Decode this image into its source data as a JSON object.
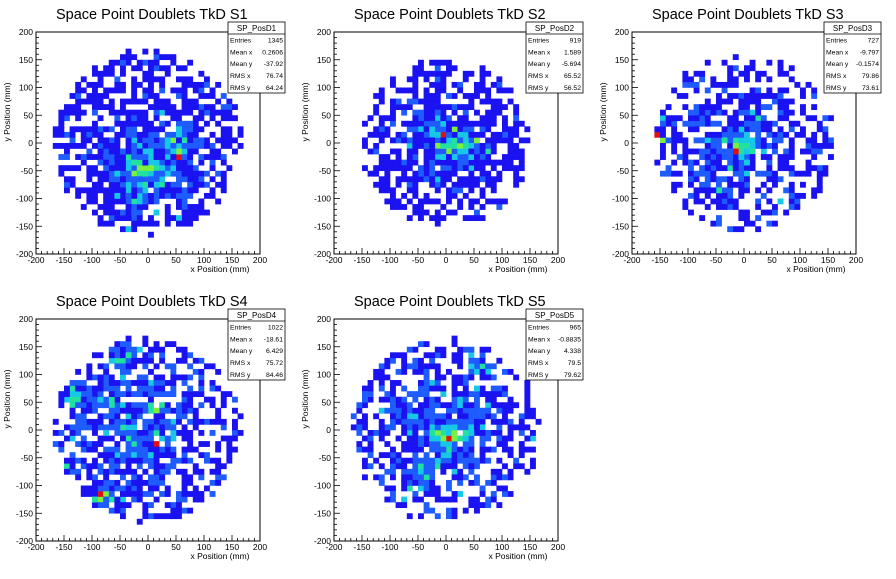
{
  "chart_data": [
    {
      "type": "heatmap",
      "title": "Space Point Doublets TkD S1",
      "xlabel": "x Position (mm)",
      "ylabel": "y Position (mm)",
      "xlim": [
        -200,
        200
      ],
      "ylim": [
        -200,
        200
      ],
      "xticks": [
        -200,
        -150,
        -100,
        -50,
        0,
        50,
        100,
        150,
        200
      ],
      "yticks": [
        -200,
        -150,
        -100,
        -50,
        0,
        50,
        100,
        150,
        200
      ],
      "stats": {
        "name": "SP_PosD1",
        "rows": [
          {
            "label": "Entries",
            "value": "1345"
          },
          {
            "label": "Mean x",
            "value": "0.2606"
          },
          {
            "label": "Mean y",
            "value": "-37.92"
          },
          {
            "label": "RMS x",
            "value": "76.74"
          },
          {
            "label": "RMS y",
            "value": "64.24"
          }
        ]
      },
      "colors": [
        "#1a12f0",
        "#1f5cff",
        "#17c8e6",
        "#22e0a0",
        "#7cf03c",
        "#e01010"
      ],
      "distribution": {
        "entries": 1345,
        "mean_x": 0.2606,
        "mean_y": -37.92,
        "rms_x": 76.74,
        "rms_y": 64.24,
        "radius": 165,
        "hot": [
          [
            0,
            -40
          ],
          [
            50,
            0
          ],
          [
            -30,
            -100
          ]
        ]
      }
    },
    {
      "type": "heatmap",
      "title": "Space Point Doublets TkD S2",
      "xlabel": "x Position (mm)",
      "ylabel": "y Position (mm)",
      "xlim": [
        -200,
        200
      ],
      "ylim": [
        -200,
        200
      ],
      "xticks": [
        -200,
        -150,
        -100,
        -50,
        0,
        50,
        100,
        150,
        200
      ],
      "yticks": [
        -200,
        -150,
        -100,
        -50,
        0,
        50,
        100,
        150,
        200
      ],
      "stats": {
        "name": "SP_PosD2",
        "rows": [
          {
            "label": "Entries",
            "value": "919"
          },
          {
            "label": "Mean x",
            "value": "1.589"
          },
          {
            "label": "Mean y",
            "value": "-5.694"
          },
          {
            "label": "RMS x",
            "value": "65.52"
          },
          {
            "label": "RMS y",
            "value": "56.52"
          }
        ]
      },
      "colors": [
        "#1a12f0",
        "#1f5cff",
        "#17c8e6",
        "#22e0a0",
        "#7cf03c",
        "#e01010"
      ],
      "distribution": {
        "entries": 919,
        "mean_x": 1.589,
        "mean_y": -5.694,
        "rms_x": 65.52,
        "rms_y": 56.52,
        "radius": 150,
        "hot": [
          [
            -20,
            20
          ],
          [
            10,
            0
          ],
          [
            30,
            -10
          ]
        ]
      }
    },
    {
      "type": "heatmap",
      "title": "Space Point Doublets TkD S3",
      "xlabel": "x Position (mm)",
      "ylabel": "y Position (mm)",
      "xlim": [
        -200,
        200
      ],
      "ylim": [
        -200,
        200
      ],
      "xticks": [
        -200,
        -150,
        -100,
        -50,
        0,
        50,
        100,
        150,
        200
      ],
      "yticks": [
        -200,
        -150,
        -100,
        -50,
        0,
        50,
        100,
        150,
        200
      ],
      "stats": {
        "name": "SP_PosD3",
        "rows": [
          {
            "label": "Entries",
            "value": "727"
          },
          {
            "label": "Mean x",
            "value": "-9.797"
          },
          {
            "label": "Mean y",
            "value": "-0.1574"
          },
          {
            "label": "RMS x",
            "value": "79.86"
          },
          {
            "label": "RMS y",
            "value": "73.61"
          }
        ]
      },
      "colors": [
        "#1a12f0",
        "#1f5cff",
        "#17c8e6",
        "#22e0a0",
        "#7cf03c",
        "#e01010"
      ],
      "distribution": {
        "entries": 727,
        "mean_x": -9.797,
        "mean_y": -0.1574,
        "rms_x": 79.86,
        "rms_y": 73.61,
        "radius": 160,
        "hot": [
          [
            -10,
            -10
          ],
          [
            0,
            0
          ],
          [
            -150,
            20
          ]
        ]
      }
    },
    {
      "type": "heatmap",
      "title": "Space Point Doublets TkD S4",
      "xlabel": "x Position (mm)",
      "ylabel": "y Position (mm)",
      "xlim": [
        -200,
        200
      ],
      "ylim": [
        -200,
        200
      ],
      "xticks": [
        -200,
        -150,
        -100,
        -50,
        0,
        50,
        100,
        150,
        200
      ],
      "yticks": [
        -200,
        -150,
        -100,
        -50,
        0,
        50,
        100,
        150,
        200
      ],
      "stats": {
        "name": "SP_PosD4",
        "rows": [
          {
            "label": "Entries",
            "value": "1022"
          },
          {
            "label": "Mean x",
            "value": "-18.61"
          },
          {
            "label": "Mean y",
            "value": "6.429"
          },
          {
            "label": "RMS x",
            "value": "75.72"
          },
          {
            "label": "RMS y",
            "value": "84.46"
          }
        ]
      },
      "colors": [
        "#1a12f0",
        "#1f5cff",
        "#17c8e6",
        "#22e0a0",
        "#7cf03c",
        "#e01010"
      ],
      "distribution": {
        "entries": 1022,
        "mean_x": -18.61,
        "mean_y": 6.429,
        "rms_x": 75.72,
        "rms_y": 84.46,
        "radius": 165,
        "hot": [
          [
            -80,
            -125
          ],
          [
            -50,
            140
          ],
          [
            -130,
            60
          ]
        ]
      }
    },
    {
      "type": "heatmap",
      "title": "Space Point Doublets TkD S5",
      "xlabel": "x Position (mm)",
      "ylabel": "y Position (mm)",
      "xlim": [
        -200,
        200
      ],
      "ylim": [
        -200,
        200
      ],
      "xticks": [
        -200,
        -150,
        -100,
        -50,
        0,
        50,
        100,
        150,
        200
      ],
      "yticks": [
        -200,
        -150,
        -100,
        -50,
        0,
        50,
        100,
        150,
        200
      ],
      "stats": {
        "name": "SP_PosD5",
        "rows": [
          {
            "label": "Entries",
            "value": "965"
          },
          {
            "label": "Mean x",
            "value": "-0.8835"
          },
          {
            "label": "Mean y",
            "value": "4.338"
          },
          {
            "label": "RMS x",
            "value": "79.5"
          },
          {
            "label": "RMS y",
            "value": "79.62"
          }
        ]
      },
      "colors": [
        "#1a12f0",
        "#1f5cff",
        "#17c8e6",
        "#22e0a0",
        "#7cf03c",
        "#e01010"
      ],
      "distribution": {
        "entries": 965,
        "mean_x": -0.8835,
        "mean_y": 4.338,
        "rms_x": 79.5,
        "rms_y": 79.62,
        "radius": 165,
        "hot": [
          [
            -40,
            -70
          ],
          [
            0,
            -10
          ],
          [
            60,
            110
          ]
        ]
      }
    }
  ]
}
